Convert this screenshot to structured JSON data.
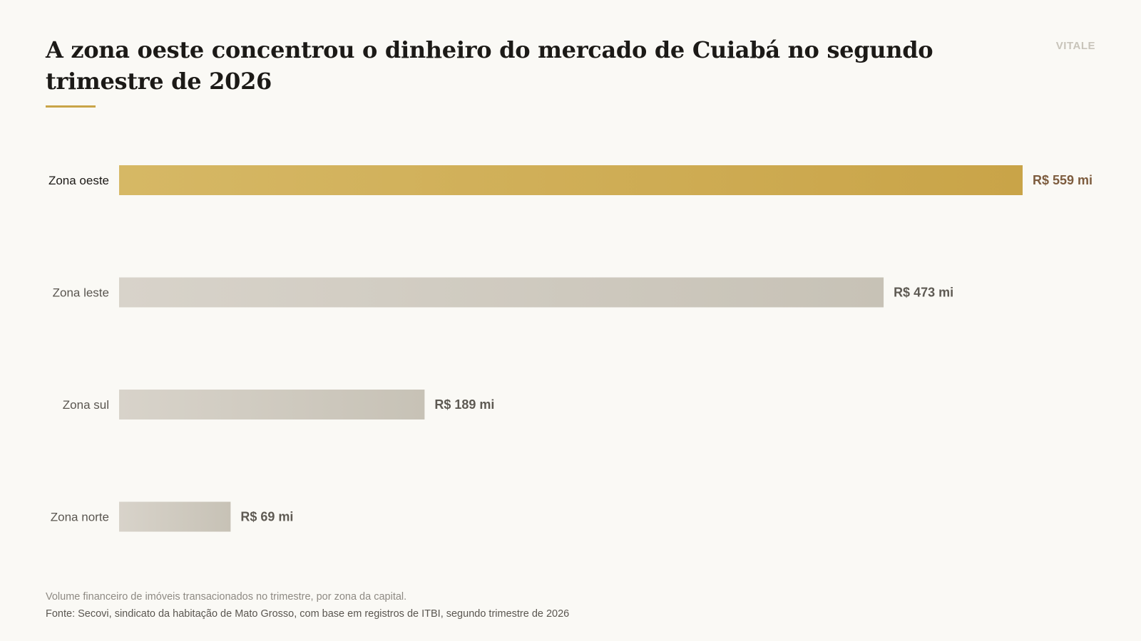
{
  "header": {
    "title": "A zona oeste concentrou o dinheiro do mercado de Cuiabá no segundo trimestre de 2026",
    "brand": "VITALE"
  },
  "chart_data": {
    "type": "bar",
    "orientation": "horizontal",
    "categories": [
      "Zona oeste",
      "Zona leste",
      "Zona sul",
      "Zona norte"
    ],
    "values": [
      559,
      473,
      189,
      69
    ],
    "value_labels": [
      "R$ 559 mi",
      "R$ 473 mi",
      "R$ 189 mi",
      "R$ 69 mi"
    ],
    "highlight": "Zona oeste",
    "unit": "R$ mi",
    "xlim": [
      0,
      559
    ],
    "grid": false,
    "legend": "none",
    "colors": {
      "highlight_start": "#d6b865",
      "highlight_end": "#c9a448",
      "default_start": "#d8d3ca",
      "default_end": "#c7c2b6",
      "highlight_value_text": "#7d5c3e",
      "default_value_text": "#5e5a53"
    }
  },
  "footer": {
    "note": "Volume financeiro de imóveis transacionados no trimestre, por zona da capital.",
    "source": "Fonte: Secovi, sindicato da habitação de Mato Grosso, com base em registros de ITBI, segundo trimestre de 2026"
  }
}
